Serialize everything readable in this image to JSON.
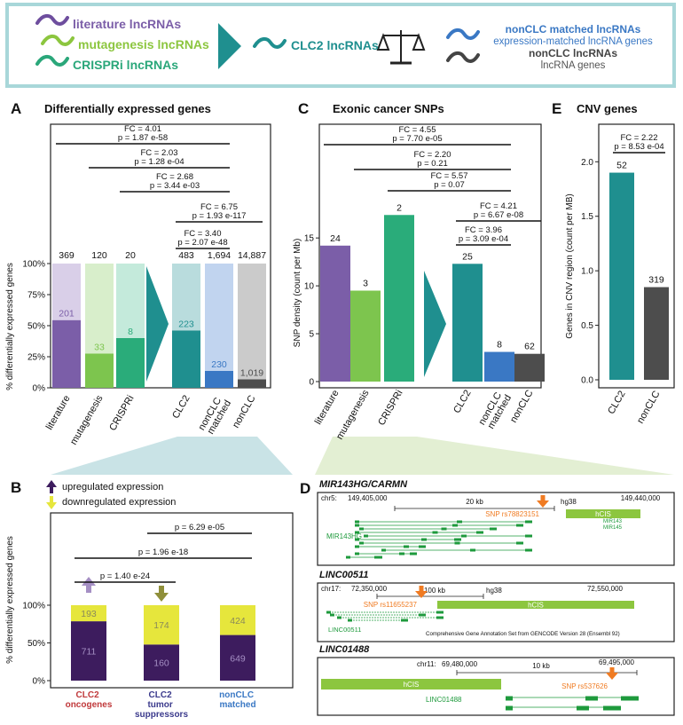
{
  "header": {
    "sources": [
      "literature lncRNAs",
      "mutagenesis lncRNAs",
      "CRISPRi lncRNAs"
    ],
    "target": "CLC2 lncRNAs",
    "controls": [
      {
        "name": "nonCLC matched lncRNAs",
        "description": "expression-matched lncRNA genes"
      },
      {
        "name": "nonCLC lncRNAs",
        "description": "lncRNA genes"
      }
    ]
  },
  "chart_data": [
    {
      "type": "bar",
      "label": "A",
      "title": "Differentially expressed genes",
      "ylabel": "% differentially expressed genes",
      "categories": [
        "literature",
        "mutagenesis",
        "CRISPRi",
        "CLC2",
        "nonCLC matched",
        "nonCLC"
      ],
      "series": [
        {
          "colors": [
            "#7b5ea8",
            "#7dc54e",
            "#2aac7a",
            "#1f8f8f",
            "#3a78c4",
            "#4d4d4d"
          ],
          "values": [
            54.5,
            27.5,
            40,
            46.2,
            13.6,
            6.8
          ]
        },
        {
          "colors": [
            "#d9cfe8",
            "#d8eecb",
            "#c4eadb",
            "#b9dcdd",
            "#c1d4ef",
            "#cbcbcb"
          ],
          "values": [
            45.5,
            72.5,
            60,
            53.8,
            86.4,
            93.2
          ]
        }
      ],
      "totals": [
        "369",
        "120",
        "20",
        "483",
        "1,694",
        "14,887"
      ],
      "de_counts": [
        "201",
        "33",
        "8",
        "223",
        "230",
        "1,019"
      ],
      "ylim": [
        0,
        100
      ],
      "yticks": [
        {
          "value": 0,
          "label": "0%"
        },
        {
          "value": 25,
          "label": "25%"
        },
        {
          "value": 50,
          "label": "50%"
        },
        {
          "value": 75,
          "label": "75%"
        },
        {
          "value": 100,
          "label": "100%"
        }
      ],
      "comparisons": [
        {
          "fc": "FC = 4.01",
          "p": "p = 1.87 e-58"
        },
        {
          "fc": "FC = 2.03",
          "p": "p = 1.28 e-04"
        },
        {
          "fc": "FC = 2.68",
          "p": "p = 3.44 e-03"
        },
        {
          "fc": "FC = 6.75",
          "p": "p = 1.93 e-117"
        },
        {
          "fc": "FC = 3.40",
          "p": "p = 2.07 e-48"
        }
      ]
    },
    {
      "type": "bar",
      "label": "B",
      "ylabel": "% differentially expressed genes",
      "categories": [
        "CLC2 oncogenes",
        "CLC2 tumor suppressors",
        "nonCLC matched"
      ],
      "category_colors": [
        "#c0393b",
        "#3b3a8c",
        "#3a78c4"
      ],
      "series": [
        {
          "name": "upregulated expression",
          "color": "#3d1c5e",
          "values": [
            78.7,
            47.9,
            60.5
          ],
          "counts": [
            "711",
            "160",
            "649"
          ]
        },
        {
          "name": "downregulated expression",
          "color": "#e6e63c",
          "values": [
            21.3,
            52.1,
            39.5
          ],
          "counts": [
            "193",
            "174",
            "424"
          ]
        }
      ],
      "ylim": [
        0,
        100
      ],
      "yticks": [
        {
          "value": 0,
          "label": "0%"
        },
        {
          "value": 50,
          "label": "50%"
        },
        {
          "value": 100,
          "label": "100%"
        }
      ],
      "comparisons": [
        {
          "p": "p = 6.29 e-05"
        },
        {
          "p": "p = 1.96 e-18"
        },
        {
          "p": "p = 1.40 e-24"
        }
      ]
    },
    {
      "type": "bar",
      "label": "C",
      "title": "Exonic cancer SNPs",
      "ylabel": "SNP density (count per Mb)",
      "categories": [
        "literature",
        "mutagenesis",
        "CRISPRi",
        "CLC2",
        "nonCLC matched",
        "nonCLC"
      ],
      "colors": [
        "#7b5ea8",
        "#7dc54e",
        "#2aac7a",
        "#1f8f8f",
        "#3a78c4",
        "#4d4d4d"
      ],
      "values": [
        14.2,
        9.5,
        17.4,
        12.3,
        3.1,
        2.9
      ],
      "snp_counts": [
        "24",
        "3",
        "2",
        "25",
        "8",
        "62"
      ],
      "ylim": [
        0,
        19
      ],
      "yticks": [
        0,
        5,
        10,
        15
      ],
      "comparisons": [
        {
          "fc": "FC = 4.55",
          "p": "p = 7.70 e-05"
        },
        {
          "fc": "FC = 2.20",
          "p": "p = 0.21"
        },
        {
          "fc": "FC = 5.57",
          "p": "p = 0.07"
        },
        {
          "fc": "FC = 4.21",
          "p": "p = 6.67 e-08"
        },
        {
          "fc": "FC = 3.96",
          "p": "p = 3.09 e-04"
        }
      ]
    },
    {
      "type": "bar",
      "label": "E",
      "title": "CNV genes",
      "ylabel": "Genes in CNV region (count per MB)",
      "categories": [
        "CLC2",
        "nonCLC"
      ],
      "colors": [
        "#1f8f8f",
        "#4d4d4d"
      ],
      "values": [
        1.9,
        0.85
      ],
      "gene_counts": [
        "52",
        "319"
      ],
      "ylim": [
        0,
        2.1
      ],
      "yticks": [
        {
          "value": 0,
          "label": "0.0"
        },
        {
          "value": 0.5,
          "label": "0.5"
        },
        {
          "value": 1,
          "label": "1.0"
        },
        {
          "value": 1.5,
          "label": "1.5"
        },
        {
          "value": 2,
          "label": "2.0"
        }
      ],
      "comparisons": [
        {
          "fc": "FC = 2.22",
          "p": "p = 8.53 e-04"
        }
      ]
    }
  ],
  "genome_panel": {
    "label": "D",
    "tracks": [
      {
        "gene": "MIR143HG/CARMN",
        "chrom": "chr5:",
        "start": "149,405,000",
        "scale": "20 kb",
        "assembly": "hg38",
        "end": "149,440,000",
        "snp": "SNP rs78823151",
        "region": "hCIS",
        "gene_labels": [
          "MIR143HG",
          "MIR143",
          "MIR145"
        ]
      },
      {
        "gene": "LINC00511",
        "chrom": "chr17:",
        "start": "72,350,000",
        "scale": "100 kb",
        "assembly": "hg38",
        "end": "72,550,000",
        "snp": "SNP rs11655237",
        "region": "hCIS",
        "gene_labels": [
          "LINC00511"
        ],
        "note": "Comprehensive Gene Annotation Set from GENCODE Version 28 (Ensembl 92)"
      },
      {
        "gene": "LINC01488",
        "chrom": "chr11:",
        "start": "69,480,000",
        "scale": "10 kb",
        "end": "69,495,000",
        "snp": "SNP rs537626",
        "region": "hCIS",
        "gene_labels": [
          "LINC01488"
        ]
      }
    ]
  }
}
